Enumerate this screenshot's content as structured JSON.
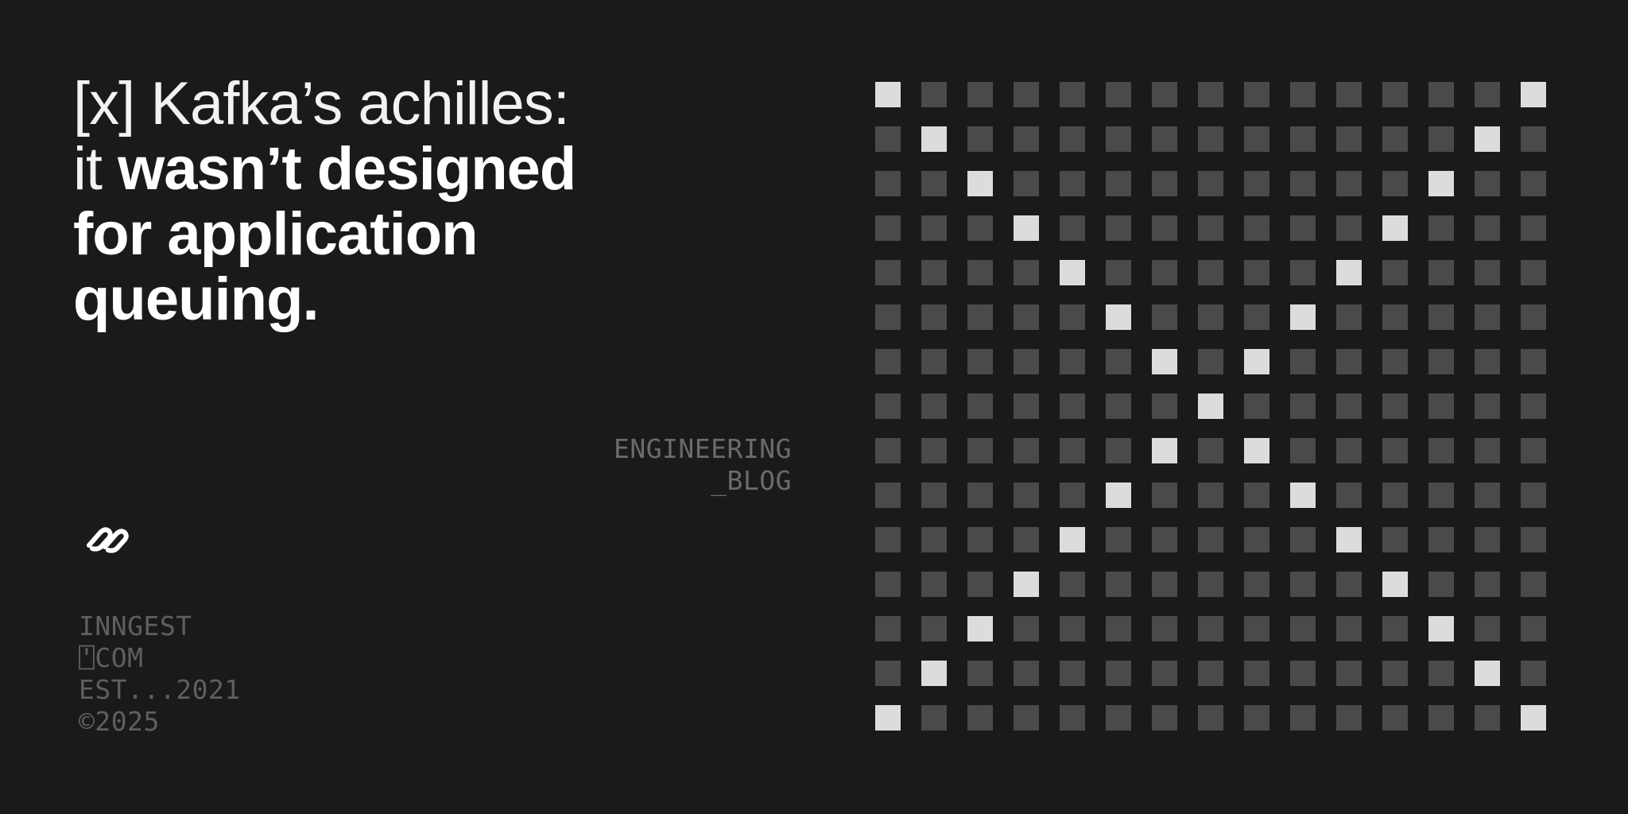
{
  "headline": {
    "line1": "[x] Kafka’s achilles:",
    "line2_light": "it ",
    "line2_bold": "wasn’t designed",
    "line3": "for application",
    "line4": "queuing."
  },
  "blog_label": {
    "line1": "ENGINEERING",
    "line2": "_BLOG"
  },
  "logo_icon": "inngest-link-logo",
  "footer_meta": {
    "line1": "INNGEST",
    "line2": "⍞COM",
    "line3": "EST...2021",
    "line4": "©2025"
  },
  "pattern": {
    "rows": 15,
    "cols": 15,
    "highlight": "x-diagonals",
    "colors": {
      "background": "#1a1a1a",
      "cell_off": "#4a4a4a",
      "cell_on": "#dcdcdc"
    }
  }
}
